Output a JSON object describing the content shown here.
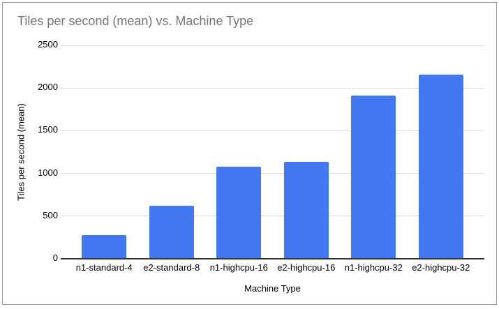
{
  "chart_data": {
    "type": "bar",
    "title": "Tiles per second (mean) vs. Machine Type",
    "xlabel": "Machine Type",
    "ylabel": "Tiles per second (mean)",
    "categories": [
      "n1-standard-4",
      "e2-standard-8",
      "n1-highcpu-16",
      "e2-highcpu-16",
      "n1-highcpu-32",
      "e2-highcpu-32"
    ],
    "values": [
      280,
      625,
      1080,
      1135,
      1915,
      2160
    ],
    "ylim": [
      0,
      2500
    ],
    "yticks": [
      0,
      500,
      1000,
      1500,
      2000,
      2500
    ],
    "grid": true,
    "legend": "none",
    "colors": {
      "bar": "#4478F0",
      "gridline": "#DDDDDD",
      "axis_line": "#333333",
      "title_text": "#757575",
      "tick_text": "#000000",
      "frame_border": "#9E9E9E",
      "background": "#FFFFFF"
    }
  }
}
